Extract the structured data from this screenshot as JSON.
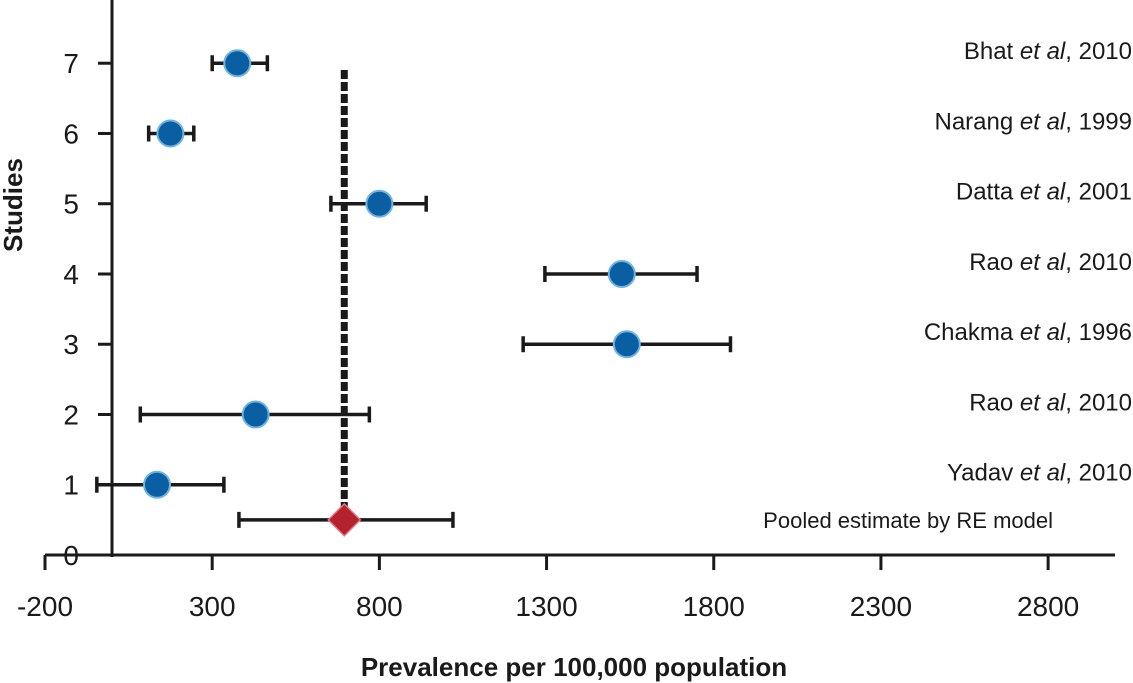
{
  "chart_data": {
    "type": "scatter",
    "subtype": "forest-plot",
    "title": "",
    "xlabel": "Prevalence per 100,000 population",
    "ylabel": "Studies",
    "xlim": [
      -200,
      3000
    ],
    "ylim": [
      0,
      7.9
    ],
    "x_ticks": [
      -200,
      300,
      800,
      1300,
      1800,
      2300,
      2800
    ],
    "x_tick_labels": [
      "-200",
      "300",
      "800",
      "1300",
      "1800",
      "2300",
      "2800"
    ],
    "y_ticks": [
      0,
      1,
      2,
      3,
      4,
      5,
      6,
      7
    ],
    "y_tick_labels": [
      "0",
      "1",
      "2",
      "3",
      "4",
      "5",
      "6",
      "7"
    ],
    "studies": [
      {
        "y": 7,
        "label_pre": "Bhat ",
        "label_em": "et al",
        "label_post": ", 2010",
        "estimate": 375,
        "lower": 300,
        "upper": 465
      },
      {
        "y": 6,
        "label_pre": "Narang ",
        "label_em": "et al",
        "label_post": ", 1999",
        "estimate": 175,
        "lower": 110,
        "upper": 245
      },
      {
        "y": 5,
        "label_pre": "Datta ",
        "label_em": "et al",
        "label_post": ", 2001",
        "estimate": 800,
        "lower": 655,
        "upper": 940
      },
      {
        "y": 4,
        "label_pre": "Rao ",
        "label_em": "et al",
        "label_post": ", 2010",
        "estimate": 1525,
        "lower": 1295,
        "upper": 1750
      },
      {
        "y": 3,
        "label_pre": "Chakma ",
        "label_em": "et al",
        "label_post": ", 1996",
        "estimate": 1540,
        "lower": 1230,
        "upper": 1850
      },
      {
        "y": 2,
        "label_pre": "Rao ",
        "label_em": "et al",
        "label_post": ", 2010",
        "estimate": 430,
        "lower": 85,
        "upper": 770
      },
      {
        "y": 1,
        "label_pre": "Yadav ",
        "label_em": "et al",
        "label_post": ", 2010",
        "estimate": 135,
        "lower": -45,
        "upper": 335
      }
    ],
    "pooled": {
      "y": 0.5,
      "label": "Pooled estimate by RE model",
      "estimate": 695,
      "lower": 380,
      "upper": 1020
    },
    "reference_line_x": 695,
    "colors": {
      "study_point": "#0a5fa3",
      "pooled_point": "#b3222d",
      "lines": "#1a1a1a"
    }
  }
}
